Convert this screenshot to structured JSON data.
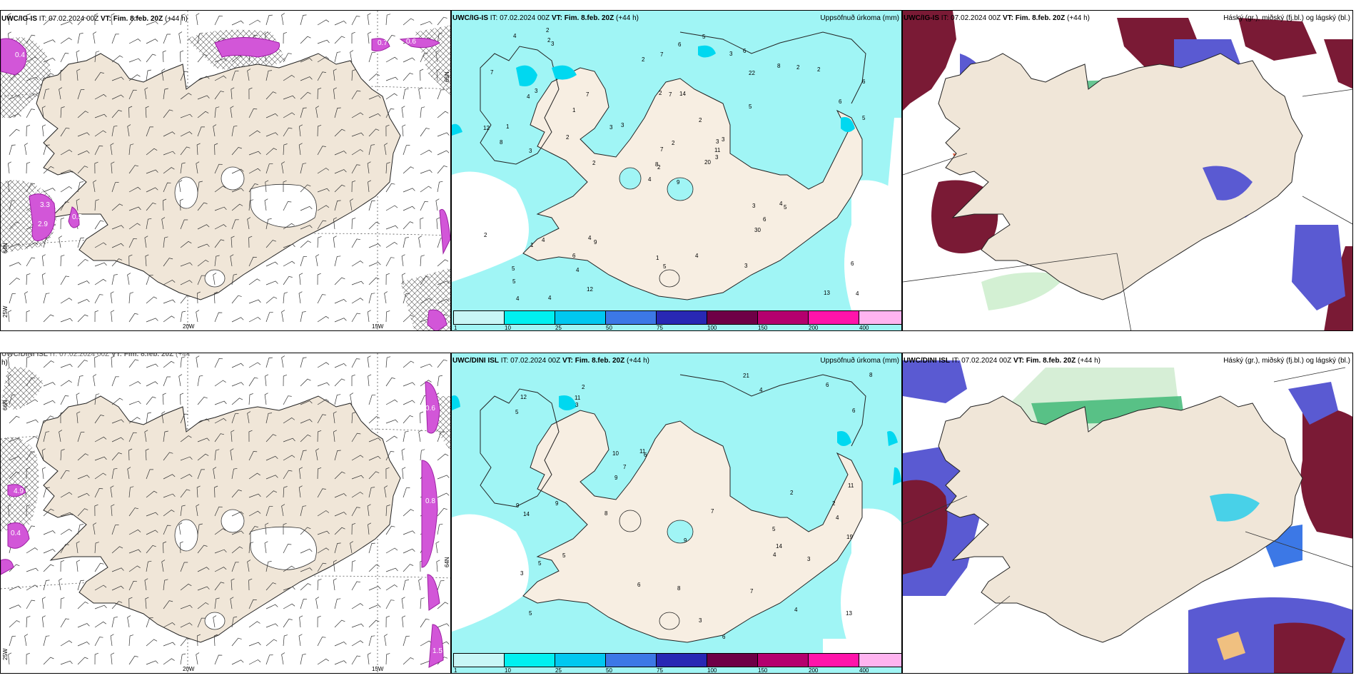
{
  "row1": {
    "left": {
      "model": "UWC/IG-IS",
      "it": "IT: 07.02.2024 00Z",
      "vt_label": "VT:",
      "vt": "Fim. 8.feb. 20Z",
      "lead": "(+44 h)",
      "lon_labels": [
        "20W",
        "15W"
      ],
      "lat_labels": [
        "65N",
        "64N",
        "25W"
      ]
    },
    "mid": {
      "model": "UWC/IG-IS",
      "it": "IT: 07.02.2024 00Z",
      "vt_label": "VT:",
      "vt": "Fim. 8.feb. 20Z",
      "lead": "(+44 h)",
      "right": "Uppsöfnuð úrkoma (mm)"
    },
    "right": {
      "model": "UWC/IG-IS",
      "it": "IT: 07.02.2024 00Z",
      "vt_label": "VT:",
      "vt": "Fim. 8.feb. 20Z",
      "lead": "(+44 h)",
      "right": "Háský (gr.), miðský (fj.bl.) og lágský (bl.)"
    }
  },
  "row2": {
    "left": {
      "model": "UWC/DINI ISL",
      "it": "IT: 07.02.2024 00Z",
      "vt_label": "VT:",
      "vt": "Fim. 8.feb. 20Z",
      "lead": "(+44",
      "lead2": "h)",
      "lon_labels": [
        "20W",
        "15W"
      ],
      "lat_labels": [
        "66N",
        "64N",
        "25W"
      ]
    },
    "mid": {
      "model": "UWC/DINI ISL",
      "it": "IT: 07.02.2024 00Z",
      "vt_label": "VT:",
      "vt": "Fim. 8.feb. 20Z",
      "lead": "(+44 h)",
      "right": "Uppsöfnuð úrkoma (mm)"
    },
    "right": {
      "model": "UWC/DINI ISL",
      "it": "IT: 07.02.2024 00Z",
      "vt_label": "VT:",
      "vt": "Fim. 8.feb. 20Z",
      "lead": "(+44 h)",
      "right": "Háský (gr.), miðský (fj.bl.) og lágský (bl.)"
    }
  },
  "legend": {
    "ticks": [
      "1",
      "10",
      "25",
      "50",
      "75",
      "100",
      "150",
      "200",
      "400"
    ],
    "colors": [
      "#c8f7f7",
      "#00f0f0",
      "#00c8f0",
      "#3c78e6",
      "#2828b4",
      "#6e0046",
      "#b4006e",
      "#ff14aa",
      "#ffb4f0"
    ]
  },
  "left_labels_row1": [
    "0.4",
    "3.5",
    "3.3",
    "0.5",
    "2.9",
    "0.7",
    "0.6"
  ],
  "left_labels_row2": [
    "4.9",
    "0.4",
    "0.6",
    "0.8",
    "1.5"
  ],
  "precip_row1": [
    "9",
    "4",
    "2",
    "5",
    "3",
    "9",
    "6",
    "14",
    "22",
    "20",
    "3",
    "4",
    "3",
    "6",
    "4",
    "5",
    "4",
    "2",
    "2",
    "4",
    "3",
    "5",
    "4",
    "7",
    "3",
    "5",
    "3",
    "7",
    "8",
    "3",
    "5",
    "8",
    "1",
    "7",
    "7",
    "8",
    "4",
    "13",
    "6",
    "4",
    "5",
    "3",
    "2",
    "30",
    "12",
    "12",
    "11",
    "4",
    "5",
    "3",
    "1",
    "6",
    "7",
    "6",
    "3",
    "6",
    "2",
    "4",
    "4",
    "2",
    "6",
    "2",
    "1",
    "1",
    "2",
    "2",
    "3",
    "2",
    "2",
    "2"
  ],
  "precip_row2": [
    "5",
    "4",
    "5",
    "2",
    "6",
    "4",
    "3",
    "4",
    "10",
    "6",
    "5",
    "9",
    "12",
    "13",
    "6",
    "11",
    "9",
    "7",
    "11",
    "5",
    "8",
    "6",
    "9",
    "19",
    "21",
    "11",
    "14",
    "14",
    "3",
    "2",
    "3",
    "7",
    "7",
    "8",
    "2",
    "3",
    "4",
    "9",
    "8",
    "5",
    "6"
  ],
  "colors": {
    "land": "#f0e6d8",
    "landalt": "#ede2d2",
    "cyan": "#a0f5f5",
    "cyan2": "#00f0f0",
    "pinkcloud": "#d256d8",
    "pinkdark": "#9a1ea0",
    "maroon": "#7a1a35",
    "purple": "#5a5ad2",
    "green": "#42b878"
  }
}
